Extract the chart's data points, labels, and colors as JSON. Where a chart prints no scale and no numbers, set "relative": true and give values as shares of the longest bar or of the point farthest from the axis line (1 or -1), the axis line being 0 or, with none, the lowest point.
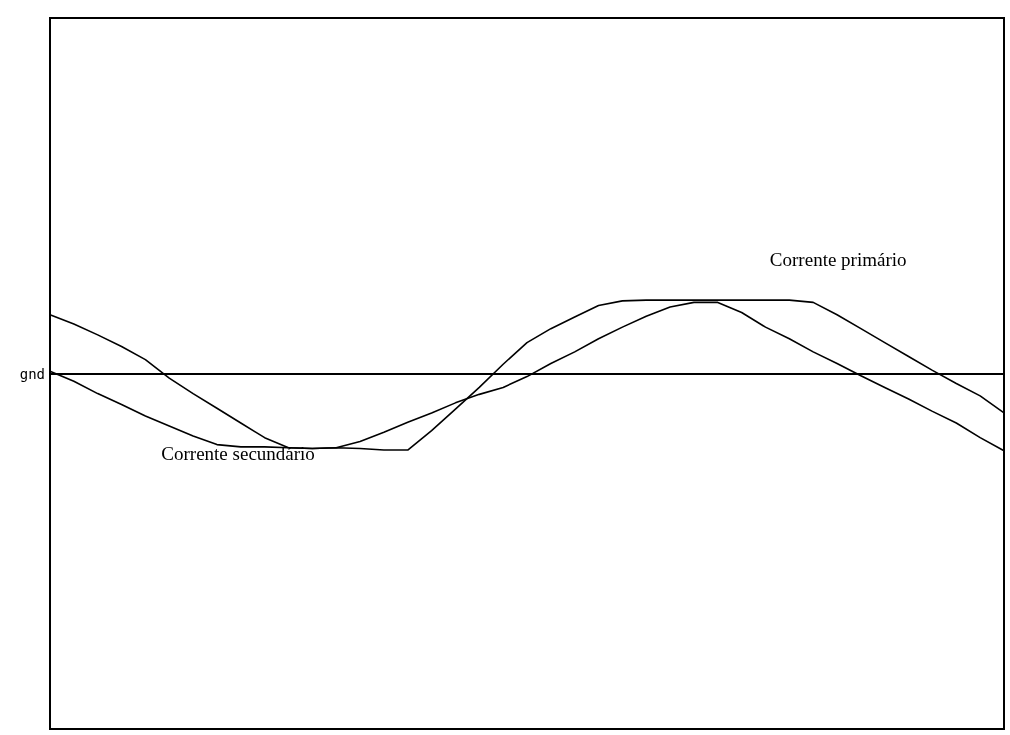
{
  "chart_data": {
    "type": "line",
    "relative": true,
    "categories": [
      null,
      null,
      null,
      null,
      null,
      null,
      null,
      null,
      null,
      null,
      null,
      null,
      null,
      null,
      null,
      null,
      null,
      null,
      null,
      null,
      null,
      null,
      null,
      null,
      null,
      null,
      null,
      null,
      null,
      null,
      null,
      null,
      null,
      null,
      null,
      null,
      null,
      null,
      null,
      null,
      null
    ],
    "series": [
      {
        "name": "Corrente primário",
        "color": "#000000",
        "values": [
          0.76,
          0.64,
          0.5,
          0.35,
          0.18,
          -0.06,
          -0.26,
          -0.45,
          -0.64,
          -0.83,
          -0.96,
          -0.97,
          -0.96,
          -0.97,
          -0.99,
          -0.99,
          -0.74,
          -0.46,
          -0.18,
          0.12,
          0.4,
          0.58,
          0.73,
          0.88,
          0.94,
          0.95,
          0.95,
          0.95,
          0.95,
          0.95,
          0.95,
          0.95,
          0.92,
          0.76,
          0.58,
          0.4,
          0.22,
          0.04,
          -0.13,
          -0.29,
          -0.51
        ]
      },
      {
        "name": "Corrente secundário",
        "color": "#000000",
        "values": [
          0.03,
          -0.1,
          -0.26,
          -0.4,
          -0.55,
          -0.68,
          -0.81,
          -0.92,
          -0.95,
          -0.95,
          -0.96,
          -0.97,
          -0.96,
          -0.88,
          -0.76,
          -0.63,
          -0.51,
          -0.38,
          -0.27,
          -0.18,
          -0.04,
          0.13,
          0.28,
          0.45,
          0.6,
          0.74,
          0.86,
          0.92,
          0.92,
          0.79,
          0.6,
          0.45,
          0.28,
          0.13,
          -0.03,
          -0.18,
          -0.33,
          -0.49,
          -0.64,
          -0.83,
          -1
        ]
      }
    ],
    "ref_lines": [
      {
        "axis": "y",
        "value": 0,
        "label": "gnd"
      }
    ],
    "grid": false,
    "legend": false
  }
}
